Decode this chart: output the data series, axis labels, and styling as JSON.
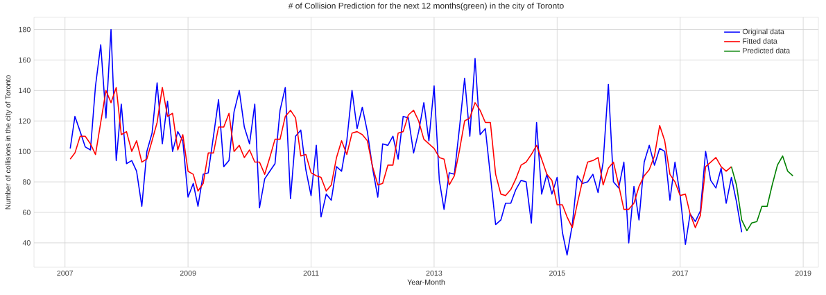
{
  "chart_data": {
    "type": "line",
    "title": "# of Collision Prediction for the next 12 months(green) in the city of Toronto",
    "xlabel": "Year-Month",
    "ylabel": "Number of collisions in the city of Toronto",
    "xlim": [
      "2006-07",
      "2019-04"
    ],
    "xticks": [
      "2007",
      "2009",
      "2011",
      "2013",
      "2015",
      "2017",
      "2019"
    ],
    "ylim": [
      24,
      188
    ],
    "yticks": [
      40,
      60,
      80,
      100,
      120,
      140,
      160,
      180
    ],
    "grid": true,
    "legend": "top right",
    "series": [
      {
        "name": "Original data",
        "color": "#0000ff",
        "x": [
          "2007-02",
          "2007-03",
          "2007-04",
          "2007-05",
          "2007-06",
          "2007-07",
          "2007-08",
          "2007-09",
          "2007-10",
          "2007-11",
          "2007-12",
          "2008-01",
          "2008-02",
          "2008-03",
          "2008-04",
          "2008-05",
          "2008-06",
          "2008-07",
          "2008-08",
          "2008-09",
          "2008-10",
          "2008-11",
          "2008-12",
          "2009-01",
          "2009-02",
          "2009-03",
          "2009-04",
          "2009-05",
          "2009-06",
          "2009-07",
          "2009-08",
          "2009-09",
          "2009-10",
          "2009-11",
          "2009-12",
          "2010-01",
          "2010-02",
          "2010-03",
          "2010-04",
          "2010-05",
          "2010-06",
          "2010-07",
          "2010-08",
          "2010-09",
          "2010-10",
          "2010-11",
          "2010-12",
          "2011-01",
          "2011-02",
          "2011-03",
          "2011-04",
          "2011-05",
          "2011-06",
          "2011-07",
          "2011-08",
          "2011-09",
          "2011-10",
          "2011-11",
          "2011-12",
          "2012-01",
          "2012-02",
          "2012-03",
          "2012-04",
          "2012-05",
          "2012-06",
          "2012-07",
          "2012-08",
          "2012-09",
          "2012-10",
          "2012-11",
          "2012-12",
          "2013-01",
          "2013-02",
          "2013-03",
          "2013-04",
          "2013-05",
          "2013-06",
          "2013-07",
          "2013-08",
          "2013-09",
          "2013-10",
          "2013-11",
          "2013-12",
          "2014-01",
          "2014-02",
          "2014-03",
          "2014-04",
          "2014-05",
          "2014-06",
          "2014-07",
          "2014-08",
          "2014-09",
          "2014-10",
          "2014-11",
          "2014-12",
          "2015-01",
          "2015-02",
          "2015-03",
          "2015-04",
          "2015-05",
          "2015-06",
          "2015-07",
          "2015-08",
          "2015-09",
          "2015-10",
          "2015-11",
          "2015-12",
          "2016-01",
          "2016-02",
          "2016-03",
          "2016-04",
          "2016-05",
          "2016-06",
          "2016-07",
          "2016-08",
          "2016-09",
          "2016-10",
          "2016-11",
          "2016-12",
          "2017-01",
          "2017-02",
          "2017-03",
          "2017-04",
          "2017-05",
          "2017-06",
          "2017-07",
          "2017-08",
          "2017-09",
          "2017-10",
          "2017-11",
          "2017-12",
          "2018-01"
        ],
        "values": [
          102,
          123,
          113,
          103,
          101,
          143,
          170,
          122,
          180,
          94,
          131,
          92,
          94,
          87,
          64,
          100,
          112,
          145,
          105,
          133,
          100,
          113,
          107,
          70,
          79,
          64,
          85,
          86,
          110,
          134,
          90,
          94,
          126,
          140,
          116,
          105,
          131,
          63,
          82,
          87,
          92,
          127,
          142,
          69,
          110,
          114,
          88,
          71,
          104,
          57,
          72,
          68,
          90,
          87,
          107,
          140,
          115,
          129,
          113,
          89,
          70,
          105,
          104,
          110,
          95,
          123,
          122,
          99,
          113,
          132,
          107,
          143,
          81,
          62,
          86,
          85,
          116,
          148,
          110,
          161,
          111,
          115,
          84,
          52,
          55,
          66,
          66,
          75,
          81,
          80,
          53,
          119,
          72,
          85,
          72,
          83,
          47,
          32,
          52,
          84,
          79,
          80,
          85,
          73,
          93,
          144,
          80,
          76,
          93,
          40,
          77,
          55,
          93,
          104,
          91,
          102,
          100,
          68,
          93,
          71,
          39,
          59,
          54,
          61,
          100,
          81,
          76,
          89,
          66,
          83,
          67,
          47
        ]
      },
      {
        "name": "Fitted data",
        "color": "#ff0000",
        "x": [
          "2007-02",
          "2007-03",
          "2007-04",
          "2007-05",
          "2007-06",
          "2007-07",
          "2007-08",
          "2007-09",
          "2007-10",
          "2007-11",
          "2007-12",
          "2008-01",
          "2008-02",
          "2008-03",
          "2008-04",
          "2008-05",
          "2008-06",
          "2008-07",
          "2008-08",
          "2008-09",
          "2008-10",
          "2008-11",
          "2008-12",
          "2009-01",
          "2009-02",
          "2009-03",
          "2009-04",
          "2009-05",
          "2009-06",
          "2009-07",
          "2009-08",
          "2009-09",
          "2009-10",
          "2009-11",
          "2009-12",
          "2010-01",
          "2010-02",
          "2010-03",
          "2010-04",
          "2010-05",
          "2010-06",
          "2010-07",
          "2010-08",
          "2010-09",
          "2010-10",
          "2010-11",
          "2010-12",
          "2011-01",
          "2011-02",
          "2011-03",
          "2011-04",
          "2011-05",
          "2011-06",
          "2011-07",
          "2011-08",
          "2011-09",
          "2011-10",
          "2011-11",
          "2011-12",
          "2012-01",
          "2012-02",
          "2012-03",
          "2012-04",
          "2012-05",
          "2012-06",
          "2012-07",
          "2012-08",
          "2012-09",
          "2012-10",
          "2012-11",
          "2012-12",
          "2013-01",
          "2013-02",
          "2013-03",
          "2013-04",
          "2013-05",
          "2013-06",
          "2013-07",
          "2013-08",
          "2013-09",
          "2013-10",
          "2013-11",
          "2013-12",
          "2014-01",
          "2014-02",
          "2014-03",
          "2014-04",
          "2014-05",
          "2014-06",
          "2014-07",
          "2014-08",
          "2014-09",
          "2014-10",
          "2014-11",
          "2014-12",
          "2015-01",
          "2015-02",
          "2015-03",
          "2015-04",
          "2015-05",
          "2015-06",
          "2015-07",
          "2015-08",
          "2015-09",
          "2015-10",
          "2015-11",
          "2015-12",
          "2016-01",
          "2016-02",
          "2016-03",
          "2016-04",
          "2016-05",
          "2016-06",
          "2016-07",
          "2016-08",
          "2016-09",
          "2016-10",
          "2016-11",
          "2016-12",
          "2017-01",
          "2017-02",
          "2017-03",
          "2017-04",
          "2017-05",
          "2017-06",
          "2017-07",
          "2017-08",
          "2017-09",
          "2017-10",
          "2017-11"
        ],
        "values": [
          95,
          99,
          110,
          110,
          105,
          98,
          119,
          140,
          132,
          142,
          111,
          113,
          100,
          107,
          93,
          95,
          107,
          119,
          142,
          123,
          125,
          101,
          111,
          87,
          85,
          74,
          79,
          99,
          99,
          116,
          116,
          125,
          100,
          104,
          96,
          101,
          93,
          93,
          85,
          96,
          108,
          108,
          123,
          127,
          122,
          97,
          98,
          86,
          84,
          83,
          74,
          78,
          96,
          107,
          98,
          112,
          113,
          111,
          107,
          90,
          78,
          79,
          91,
          91,
          112,
          113,
          124,
          127,
          120,
          108,
          105,
          102,
          96,
          95,
          78,
          84,
          101,
          120,
          122,
          132,
          127,
          119,
          119,
          85,
          72,
          71,
          75,
          82,
          91,
          93,
          98,
          104,
          95,
          85,
          81,
          65,
          65,
          57,
          50,
          66,
          81,
          93,
          94,
          96,
          78,
          89,
          93,
          78,
          62,
          62,
          66,
          77,
          84,
          88,
          97,
          117,
          107,
          85,
          80,
          71,
          72,
          59,
          50,
          58,
          90,
          93,
          96,
          90,
          87,
          90
        ]
      },
      {
        "name": "Predicted data",
        "color": "#008000",
        "x": [
          "2017-11",
          "2017-12",
          "2018-01",
          "2018-02",
          "2018-03",
          "2018-04",
          "2018-05",
          "2018-06",
          "2018-07",
          "2018-08",
          "2018-09",
          "2018-10",
          "2018-11"
        ],
        "values": [
          90,
          78,
          55,
          48,
          53,
          54,
          64,
          64,
          78,
          91,
          97,
          87,
          84
        ]
      }
    ]
  }
}
